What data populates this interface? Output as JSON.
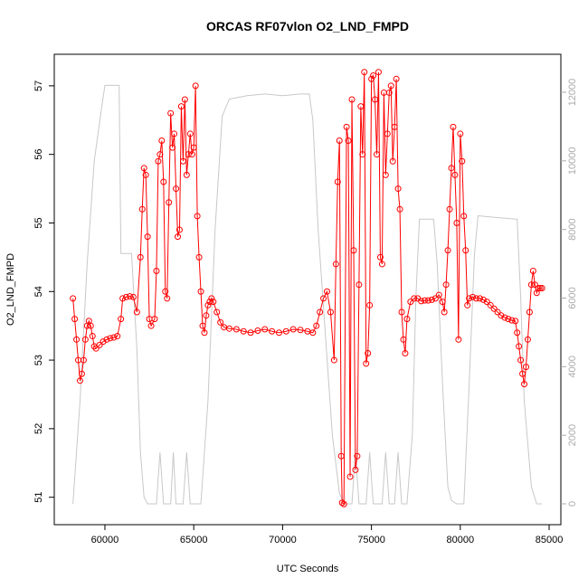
{
  "chart_data": {
    "type": "line",
    "title": "ORCAS RF07vlon O2_LND_FMPD",
    "xlabel": "UTC Seconds",
    "ylabel": "O2_LND_FMPD",
    "xlim": [
      57150,
      85660
    ],
    "ylim": [
      50.6,
      57.46
    ],
    "y2lim": [
      -607,
      13108
    ],
    "xticks": [
      60000,
      65000,
      70000,
      75000,
      80000,
      85000
    ],
    "yticks": [
      51,
      52,
      53,
      54,
      55,
      56,
      57
    ],
    "y2ticks": [
      0,
      2000,
      4000,
      6000,
      8000,
      10000,
      12000
    ],
    "series": [
      {
        "color": "#c8c8c8",
        "axis": "y2",
        "markers": false,
        "x": [
          58200,
          58600,
          59000,
          59400,
          59800,
          60000,
          60200,
          60800,
          60900,
          61500,
          61800,
          62000,
          62200,
          62400,
          62900,
          63100,
          63300,
          63700,
          63850,
          64000,
          64400,
          64600,
          64800,
          65200,
          65400,
          65800,
          66200,
          66600,
          67000,
          68000,
          69000,
          70000,
          71000,
          71500,
          71700,
          72000,
          72400,
          72800,
          73200,
          73500,
          73900,
          74100,
          74300,
          74700,
          74900,
          75100,
          75600,
          75800,
          76000,
          76300,
          76500,
          76700,
          77000,
          77300,
          77500,
          77700,
          78500,
          78700,
          79000,
          79300,
          79500,
          79800,
          80200,
          80500,
          80800,
          81000,
          82000,
          83200,
          83400,
          83600,
          84000,
          84300,
          84600
        ],
        "values": [
          0,
          3000,
          7000,
          10000,
          11500,
          12200,
          12200,
          12200,
          7300,
          7300,
          4500,
          1500,
          200,
          0,
          0,
          1500,
          0,
          0,
          1500,
          0,
          0,
          1500,
          0,
          0,
          0,
          3000,
          8000,
          11300,
          11800,
          11900,
          11950,
          11900,
          11950,
          11950,
          11200,
          8000,
          5000,
          2000,
          300,
          0,
          0,
          1500,
          0,
          0,
          1500,
          0,
          0,
          1500,
          0,
          0,
          1500,
          0,
          0,
          2000,
          6000,
          8300,
          8300,
          7000,
          3500,
          500,
          100,
          0,
          0,
          3500,
          7300,
          8400,
          8350,
          8300,
          6000,
          3000,
          500,
          0,
          0
        ]
      },
      {
        "color": "#ff0000",
        "markers": true,
        "x": [
          58200,
          58300,
          58400,
          58500,
          58600,
          58700,
          58800,
          58900,
          59000,
          59100,
          59200,
          59300,
          59400,
          59500,
          59700,
          59900,
          60100,
          60300,
          60500,
          60700,
          60900,
          61000,
          61200,
          61400,
          61600,
          61800,
          62000,
          62100,
          62200,
          62300,
          62400,
          62500,
          62600,
          62800,
          62900,
          63000,
          63100,
          63200,
          63300,
          63400,
          63500,
          63600,
          63700,
          63800,
          63900,
          64000,
          64100,
          64200,
          64300,
          64400,
          64500,
          64600,
          64700,
          64800,
          64900,
          65000,
          65100,
          65200,
          65300,
          65400,
          65500,
          65600,
          65700,
          65800,
          65900,
          66000,
          66100,
          66300,
          66500,
          66700,
          67000,
          67400,
          67800,
          68200,
          68600,
          69000,
          69400,
          69800,
          70200,
          70600,
          71000,
          71400,
          71700,
          71900,
          72100,
          72300,
          72500,
          72700,
          72900,
          73000,
          73100,
          73200,
          73300,
          73350,
          73450,
          73600,
          73700,
          73800,
          73900,
          74000,
          74100,
          74200,
          74300,
          74400,
          74500,
          74600,
          74700,
          74800,
          74900,
          75000,
          75100,
          75200,
          75300,
          75400,
          75500,
          75600,
          75700,
          75800,
          75900,
          76000,
          76100,
          76200,
          76300,
          76400,
          76500,
          76600,
          76700,
          76800,
          76900,
          77000,
          77200,
          77400,
          77600,
          77800,
          78000,
          78200,
          78400,
          78600,
          78800,
          79000,
          79100,
          79200,
          79300,
          79400,
          79500,
          79600,
          79700,
          79800,
          79900,
          80000,
          80100,
          80200,
          80300,
          80400,
          80500,
          80700,
          80900,
          81100,
          81300,
          81500,
          81700,
          81900,
          82100,
          82300,
          82500,
          82700,
          82900,
          83100,
          83200,
          83300,
          83400,
          83500,
          83600,
          83700,
          83800,
          83900,
          84000,
          84100,
          84200,
          84300,
          84400,
          84500,
          84600
        ],
        "values": [
          53.9,
          53.6,
          53.3,
          53.0,
          52.7,
          52.8,
          53.0,
          53.3,
          53.5,
          53.57,
          53.5,
          53.35,
          53.2,
          53.17,
          53.22,
          53.27,
          53.3,
          53.32,
          53.33,
          53.35,
          53.6,
          53.9,
          53.92,
          53.93,
          53.92,
          53.7,
          54.5,
          55.2,
          55.8,
          55.7,
          54.8,
          53.6,
          53.5,
          53.6,
          54.3,
          55.9,
          56.0,
          56.2,
          55.6,
          54.0,
          53.9,
          55.3,
          56.6,
          56.1,
          56.3,
          55.5,
          54.8,
          54.9,
          56.7,
          55.9,
          56.8,
          55.7,
          56.0,
          56.3,
          56.0,
          56.1,
          57.0,
          55.1,
          54.5,
          54.0,
          53.5,
          53.4,
          53.65,
          53.8,
          53.85,
          53.9,
          53.85,
          53.7,
          53.55,
          53.48,
          53.46,
          53.45,
          53.42,
          53.4,
          53.43,
          53.45,
          53.42,
          53.4,
          53.42,
          53.45,
          53.44,
          53.42,
          53.4,
          53.5,
          53.7,
          53.9,
          54.0,
          53.7,
          53.0,
          54.4,
          55.6,
          56.2,
          51.6,
          50.92,
          50.9,
          56.4,
          56.2,
          51.3,
          56.8,
          54.6,
          51.4,
          51.6,
          54.1,
          56.7,
          56.0,
          57.2,
          52.95,
          53.1,
          53.8,
          57.1,
          57.15,
          56.8,
          56.0,
          57.2,
          54.5,
          54.4,
          56.9,
          55.7,
          56.3,
          56.9,
          57.0,
          55.9,
          56.4,
          57.1,
          55.5,
          55.2,
          53.7,
          53.3,
          53.1,
          53.6,
          53.85,
          53.9,
          53.9,
          53.86,
          53.87,
          53.87,
          53.88,
          53.9,
          53.95,
          53.85,
          53.7,
          54.1,
          54.6,
          55.2,
          55.8,
          56.4,
          55.7,
          55.0,
          53.3,
          56.3,
          55.9,
          55.1,
          54.6,
          53.8,
          53.9,
          53.92,
          53.9,
          53.9,
          53.88,
          53.85,
          53.8,
          53.75,
          53.7,
          53.65,
          53.62,
          53.6,
          53.58,
          53.57,
          53.4,
          53.2,
          53.0,
          52.8,
          52.65,
          52.9,
          53.3,
          53.7,
          54.1,
          54.3,
          54.1,
          53.98,
          54.05,
          54.05,
          54.05
        ]
      }
    ]
  }
}
